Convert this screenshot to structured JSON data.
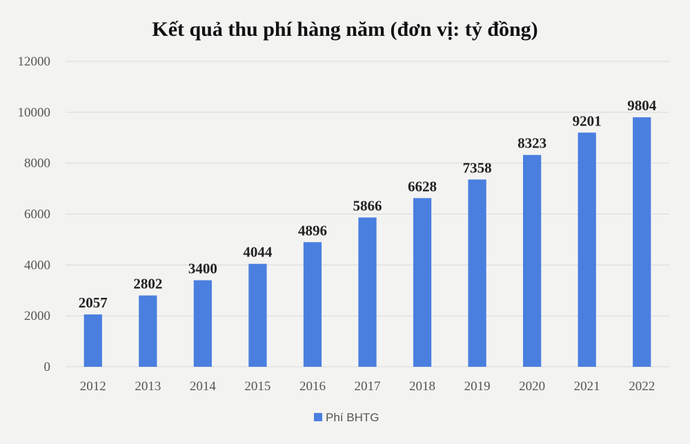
{
  "chart_data": {
    "type": "bar",
    "title": "Kết quả thu phí hàng năm (đơn vị: tỷ đồng)",
    "xlabel": "",
    "ylabel": "",
    "categories": [
      "2012",
      "2013",
      "2014",
      "2015",
      "2016",
      "2017",
      "2018",
      "2019",
      "2020",
      "2021",
      "2022"
    ],
    "series": [
      {
        "name": "Phí BHTG",
        "values": [
          2057,
          2802,
          3400,
          4044,
          4896,
          5866,
          6628,
          7358,
          8323,
          9201,
          9804
        ]
      }
    ],
    "ylim": [
      0,
      12000
    ],
    "yticks": [
      0,
      2000,
      4000,
      6000,
      8000,
      10000,
      12000
    ],
    "grid": true,
    "legend_position": "bottom",
    "data_labels": true,
    "colors": {
      "bar": "#4a7fe0",
      "background": "#f3f3f1"
    }
  }
}
